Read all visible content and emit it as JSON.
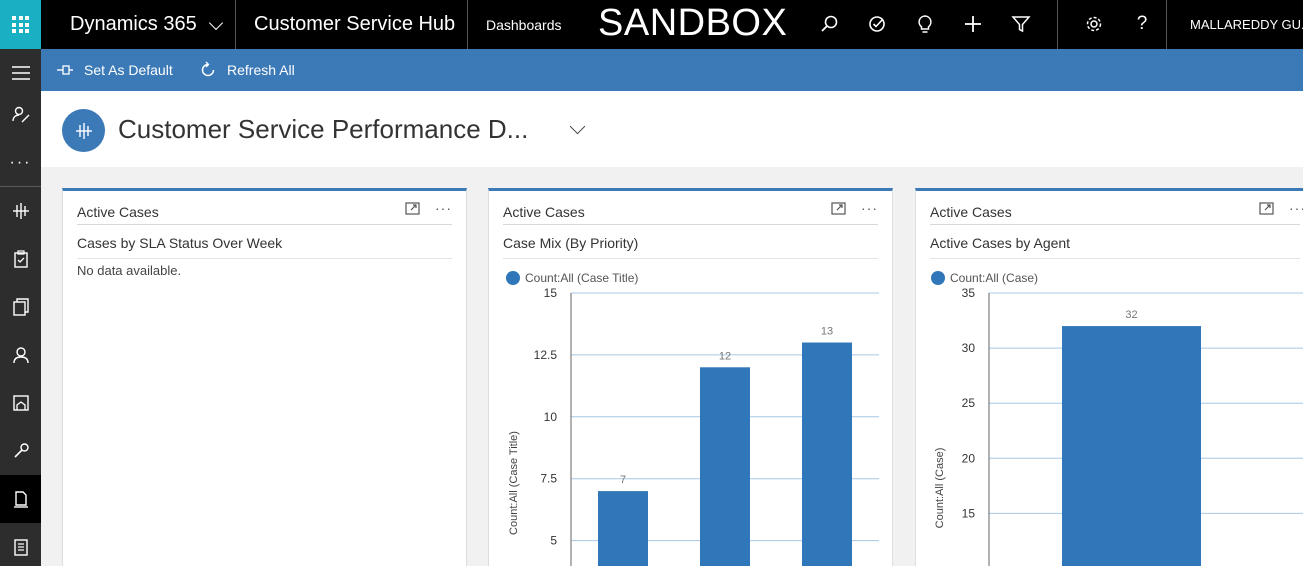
{
  "topbar": {
    "app_name": "Dynamics 365",
    "module": "Customer Service Hub",
    "nav": "Dashboards",
    "environment": "SANDBOX",
    "user": "MALLAREDDY GU..."
  },
  "icons": {
    "search": "search-icon",
    "assistant": "task-icon",
    "ideas": "lightbulb-icon",
    "new": "plus-icon",
    "filter": "filter-icon",
    "settings": "gear-icon",
    "help": "question-icon"
  },
  "commandbar": {
    "set_default": "Set As Default",
    "refresh": "Refresh All"
  },
  "header": {
    "title": "Customer Service Performance D..."
  },
  "colors": {
    "accent": "#3b79b7",
    "bar": "#2f77b8",
    "waffle": "#1ab0c4"
  },
  "cards": [
    {
      "view": "Active Cases",
      "chart_title": "Cases by SLA Status Over Week",
      "message": "No data available."
    },
    {
      "view": "Active Cases",
      "chart_title": "Case Mix (By Priority)",
      "legend": "Count:All (Case Title)",
      "ylabel": "Count:All (Case Title)"
    },
    {
      "view": "Active Cases",
      "chart_title": "Active Cases by Agent",
      "legend": "Count:All (Case)",
      "ylabel": "Count:All (Case)"
    }
  ],
  "chart_data": [
    {
      "type": "bar",
      "title": "Case Mix (By Priority)",
      "categories": [
        "",
        "",
        ""
      ],
      "series": [
        {
          "name": "Count:All (Case Title)",
          "values": [
            7,
            12,
            13
          ]
        }
      ],
      "yticks": [
        "15",
        "12.5",
        "10",
        "7.5",
        "5"
      ],
      "ylim": [
        4.5,
        15
      ],
      "ylabel": "Count:All (Case Title)",
      "xlabel": "",
      "grid": true,
      "legend": "top-left"
    },
    {
      "type": "bar",
      "title": "Active Cases by Agent",
      "categories": [
        ""
      ],
      "series": [
        {
          "name": "Count:All (Case)",
          "values": [
            32
          ]
        }
      ],
      "yticks": [
        "35",
        "30",
        "25",
        "20",
        "15"
      ],
      "ylim": [
        10.5,
        35
      ],
      "ylabel": "Count:All (Case)",
      "xlabel": "",
      "grid": true,
      "legend": "top-left"
    }
  ]
}
